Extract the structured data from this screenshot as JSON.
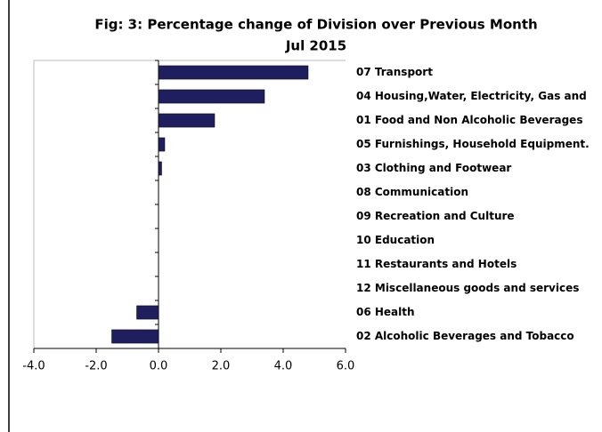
{
  "chart_data": {
    "type": "bar",
    "orientation": "horizontal",
    "title": "Fig: 3: Percentage change of Division over Previous Month",
    "subtitle": "Jul 2015",
    "categories": [
      "07 Transport",
      "04 Housing,Water, Electricity, Gas and",
      "01 Food and Non Alcoholic Beverages",
      "05 Furnishings, Household Equipment.",
      "03 Clothing and Footwear",
      "08 Communication",
      "09 Recreation and Culture",
      "10 Education",
      "11 Restaurants and Hotels",
      "12 Miscellaneous goods and services",
      "06 Health",
      "02 Alcoholic Beverages and Tobacco"
    ],
    "values": [
      4.8,
      3.4,
      1.8,
      0.2,
      0.1,
      0,
      0,
      0,
      0,
      0,
      -0.7,
      -1.5
    ],
    "color": "#1f1f5f",
    "xlim": [
      -4,
      6
    ],
    "xticks": [
      {
        "value": -4,
        "label": "-4.0"
      },
      {
        "value": -2,
        "label": "-2.0"
      },
      {
        "value": 0,
        "label": "0.0"
      },
      {
        "value": 2,
        "label": "2.0"
      },
      {
        "value": 4,
        "label": "4.0"
      },
      {
        "value": 6,
        "label": "6.0"
      }
    ],
    "grid": false
  }
}
